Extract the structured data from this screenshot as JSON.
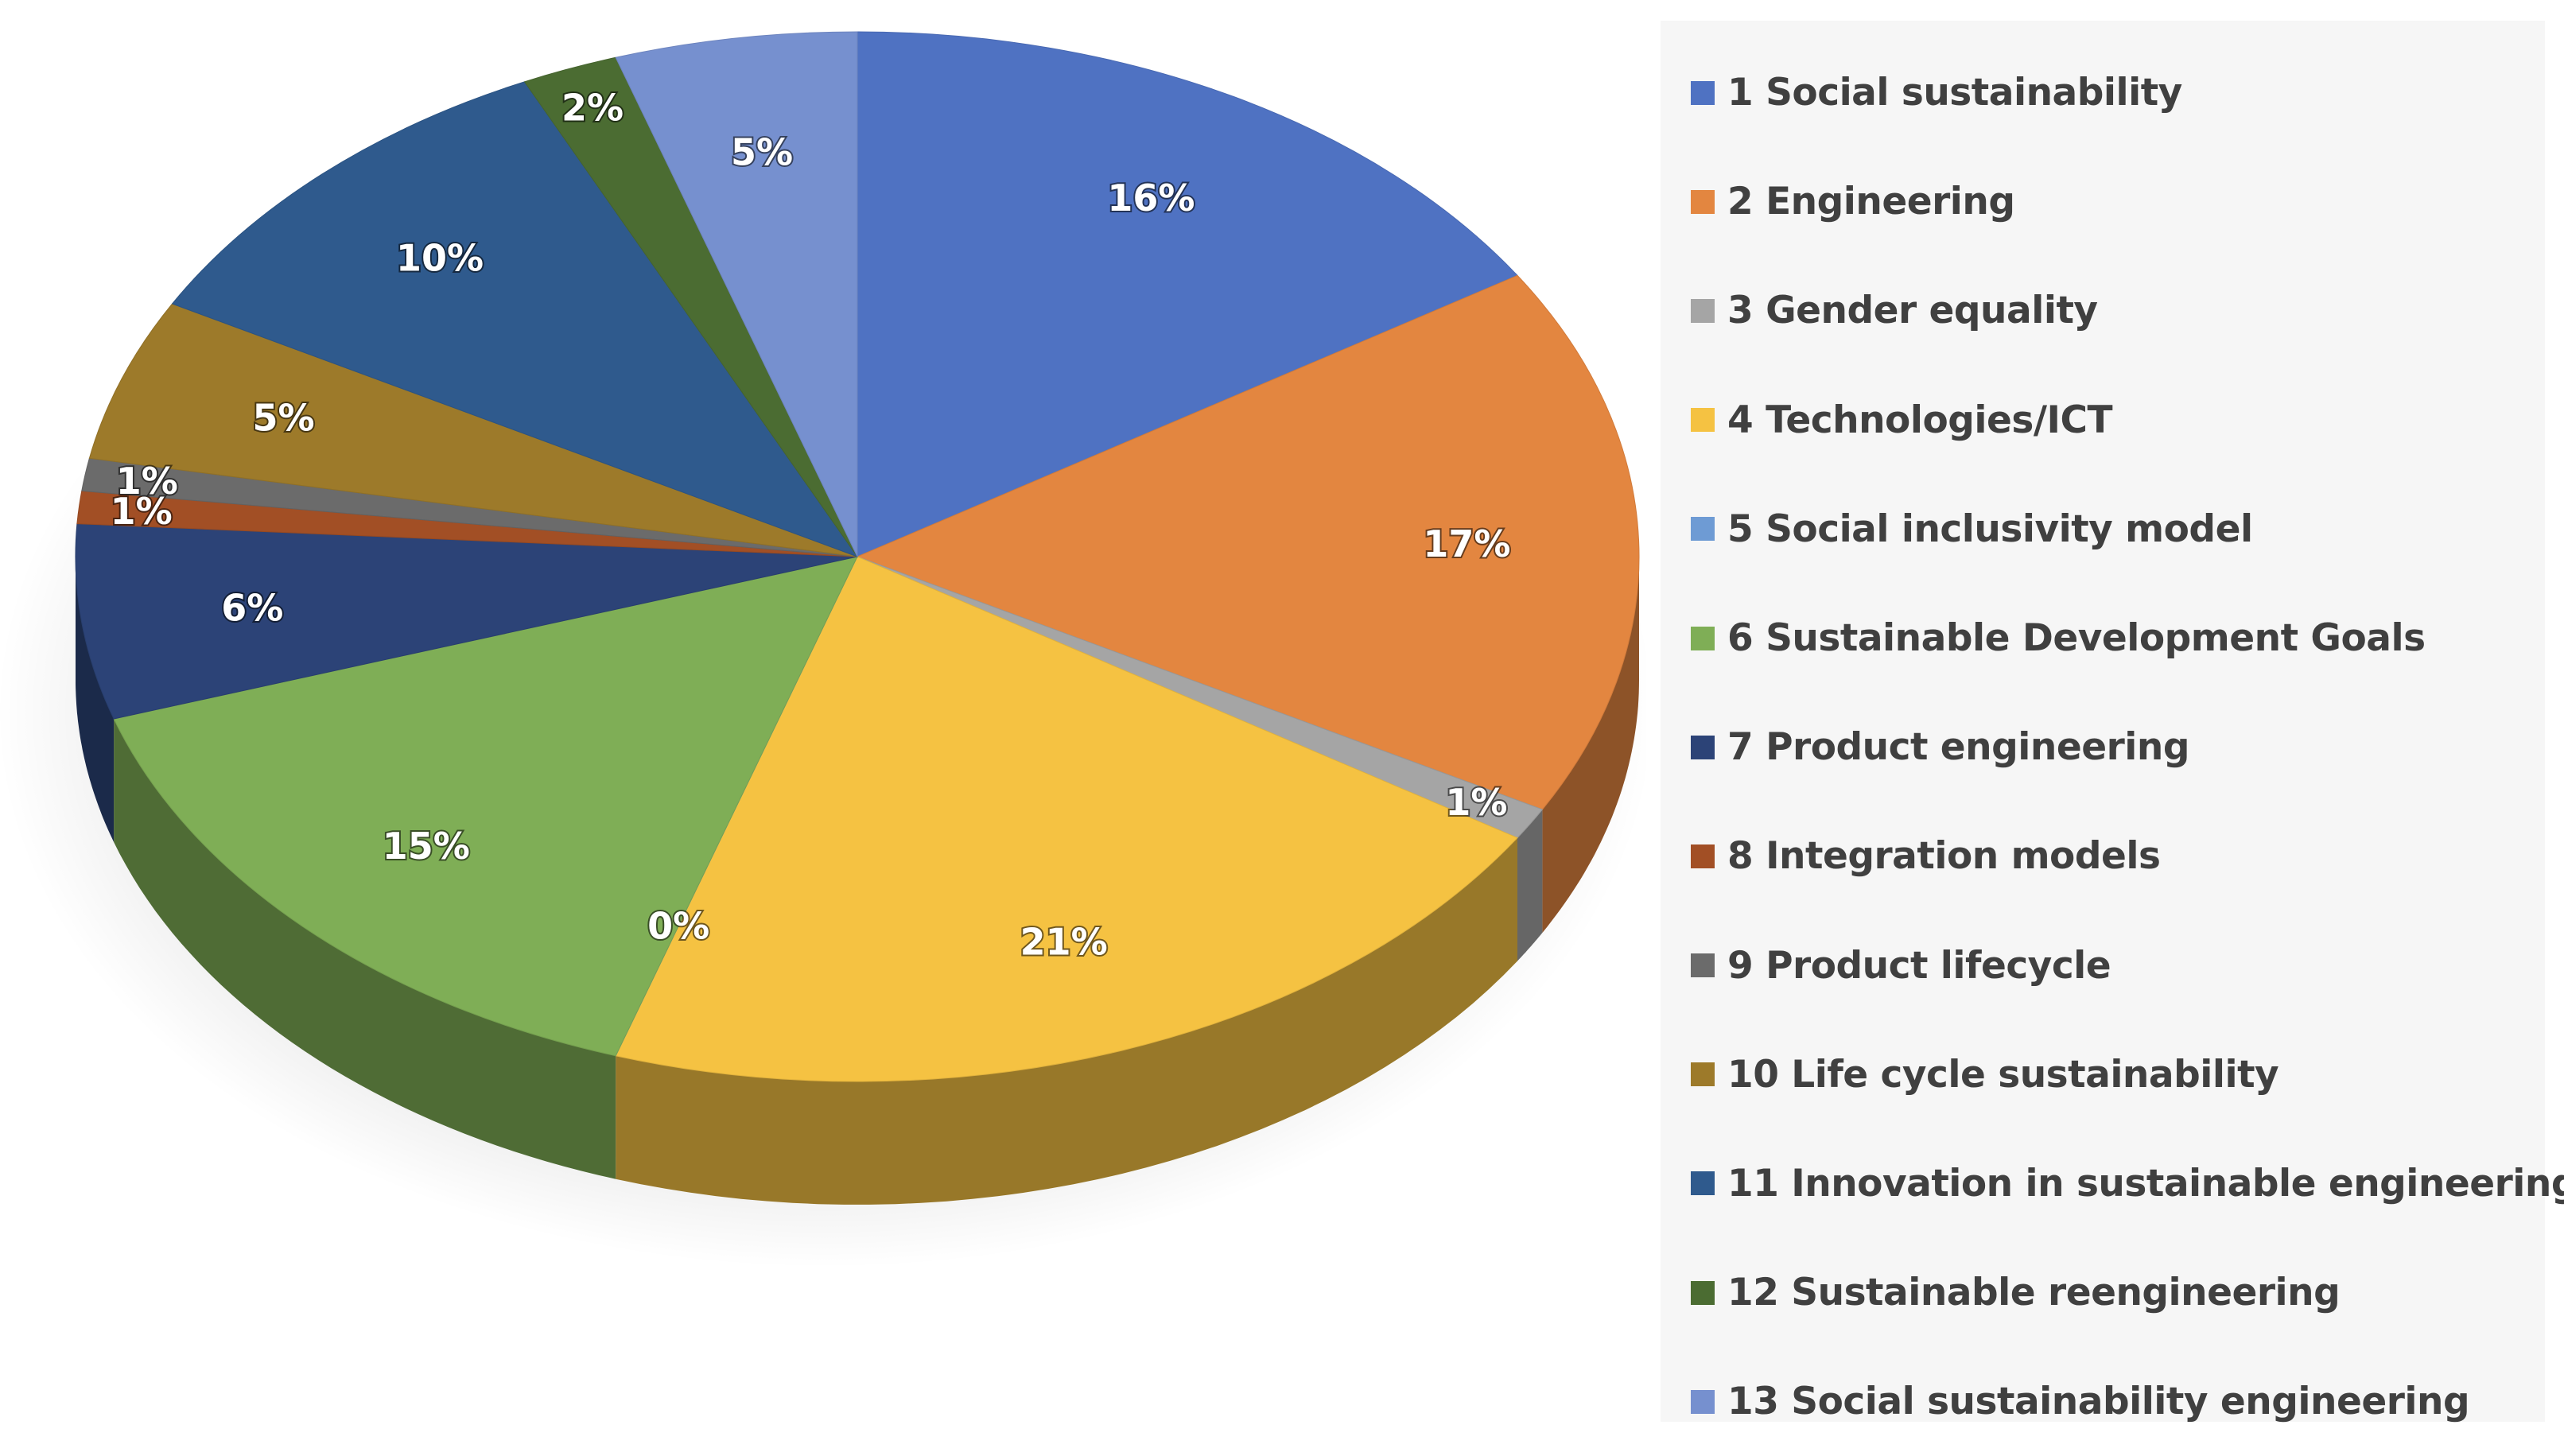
{
  "chart_data": {
    "type": "pie",
    "style": "3d",
    "title": "",
    "legend_position": "right",
    "categories": [
      "1 Social sustainability",
      "2 Engineering",
      "3 Gender equality",
      "4 Technologies/ICT",
      "5 Social inclusivity model",
      "6 Sustainable Development Goals",
      "7 Product engineering",
      "8 Integration models",
      "9 Product lifecycle",
      "10 Life cycle sustainability",
      "11 Innovation in sustainable engineering",
      "12 Sustainable reengineering",
      "13 Social sustainability engineering"
    ],
    "values": [
      16,
      17,
      1,
      21,
      0,
      15,
      6,
      1,
      1,
      5,
      10,
      2,
      5
    ],
    "value_labels": [
      "16%",
      "17%",
      "1%",
      "21%",
      "0%",
      "15%",
      "6%",
      "1%",
      "1%",
      "5%",
      "10%",
      "2%",
      "5%"
    ],
    "colors": [
      "#4f72c2",
      "#e38640",
      "#a5a5a5",
      "#f5c242",
      "#6e9bd4",
      "#7fae56",
      "#2c4377",
      "#a24f25",
      "#6b6b6b",
      "#9d7a2a",
      "#2f5a8d",
      "#4b6c32",
      "#7690cf"
    ]
  }
}
